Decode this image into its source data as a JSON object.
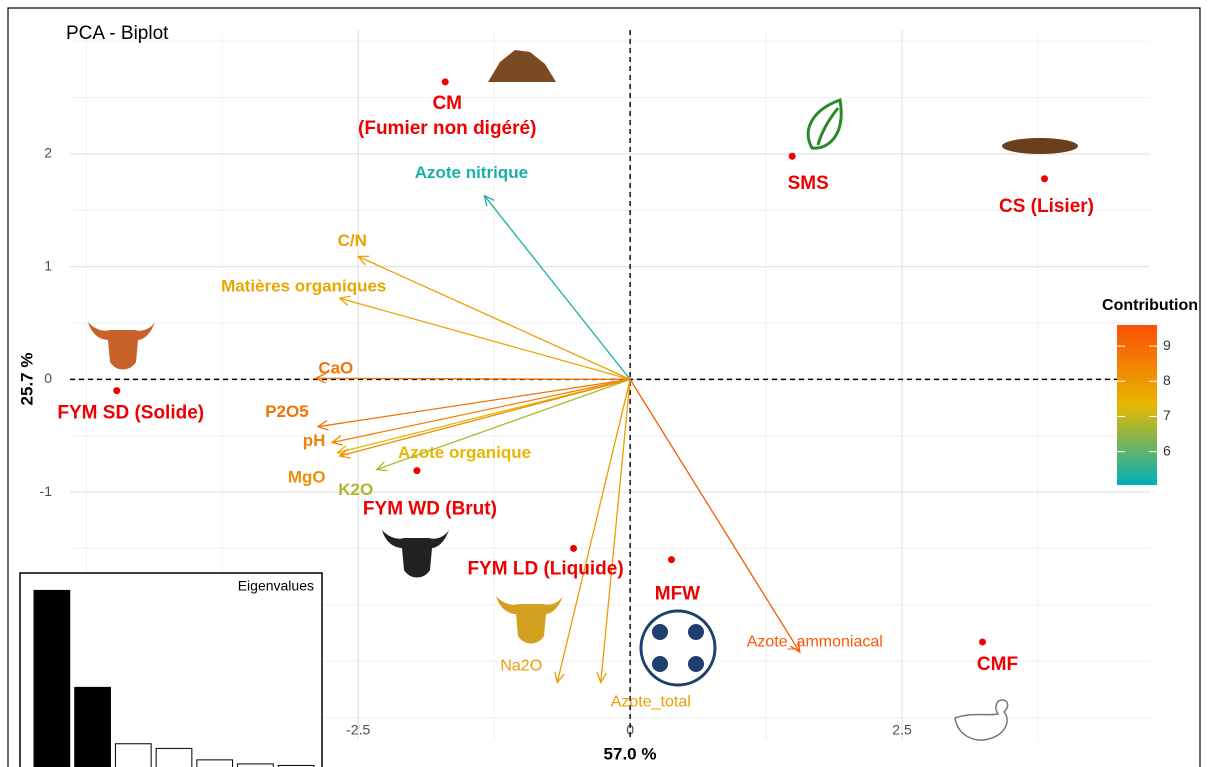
{
  "chart_data": {
    "type": "biplot",
    "title": "PCA - Biplot",
    "x_label": "57.0 %",
    "y_label": "25.7 %",
    "xlim": [
      -5.15,
      4.78
    ],
    "ylim": [
      -3.2,
      3.1
    ],
    "xticks": [
      -2.5,
      0,
      2.5
    ],
    "yticks": [
      -1,
      0,
      1,
      2
    ],
    "grid": true,
    "point_color": "#ee0000",
    "points": [
      {
        "label": [
          "CM",
          "(Fumier non digéré)"
        ],
        "x": -1.7,
        "y": 2.64
      },
      {
        "label": [
          "SMS"
        ],
        "x": 1.49,
        "y": 1.98
      },
      {
        "label": [
          "CS (Lisier)"
        ],
        "x": 3.81,
        "y": 1.78
      },
      {
        "label": [
          "FYM SD (Solide)"
        ],
        "x": -4.72,
        "y": -0.1
      },
      {
        "label": [
          "FYM WD (Brut)"
        ],
        "x": -1.96,
        "y": -0.81
      },
      {
        "label": [
          "FYM LD (Liquide)"
        ],
        "x": -0.52,
        "y": -1.5
      },
      {
        "label": [
          "MFW"
        ],
        "x": 0.38,
        "y": -1.6
      },
      {
        "label": [
          "CMF"
        ],
        "x": 3.24,
        "y": -2.33
      }
    ],
    "variables": [
      {
        "name": "Azote nitrique",
        "x": -1.34,
        "y": 1.63,
        "contribution": 5.3
      },
      {
        "name": "C/N",
        "x": -2.5,
        "y": 1.09,
        "contribution": 7.8
      },
      {
        "name": "Matières organiques",
        "x": -2.67,
        "y": 0.72,
        "contribution": 7.7
      },
      {
        "name": "CaO",
        "x": -2.89,
        "y": 0.01,
        "contribution": 8.8
      },
      {
        "name": "P2O5",
        "x": -2.87,
        "y": -0.42,
        "contribution": 8.8
      },
      {
        "name": "pH",
        "x": -2.74,
        "y": -0.56,
        "contribution": 8.5
      },
      {
        "name": "Azote organique",
        "x": -2.69,
        "y": -0.65,
        "contribution": 7.4
      },
      {
        "name": "MgO",
        "x": -2.67,
        "y": -0.68,
        "contribution": 8.2
      },
      {
        "name": "K2O",
        "x": -2.33,
        "y": -0.8,
        "contribution": 6.8
      },
      {
        "name": "Na2O",
        "x": -0.67,
        "y": -2.69,
        "contribution": 7.9
      },
      {
        "name": "Azote_total",
        "x": -0.27,
        "y": -2.69,
        "contribution": 7.9
      },
      {
        "name": "Azote_ammoniacal",
        "x": 1.56,
        "y": -2.42,
        "contribution": 9.4
      }
    ],
    "legend": {
      "title": "Contribution",
      "range": [
        5.05,
        9.6
      ],
      "ticks": [
        6,
        7,
        8,
        9
      ],
      "colors": [
        "#00AFBB",
        "#E7B800",
        "#FC4E07"
      ]
    },
    "inset": {
      "type": "bar",
      "title": "Eigenvalues",
      "values": [
        57.0,
        25.7,
        7.5,
        6.0,
        2.3,
        1.0,
        0.5
      ],
      "colors": [
        "#000000",
        "#000000",
        "#ffffff",
        "#ffffff",
        "#ffffff",
        "#ffffff",
        "#ffffff"
      ],
      "ylim": [
        0,
        61
      ]
    }
  }
}
